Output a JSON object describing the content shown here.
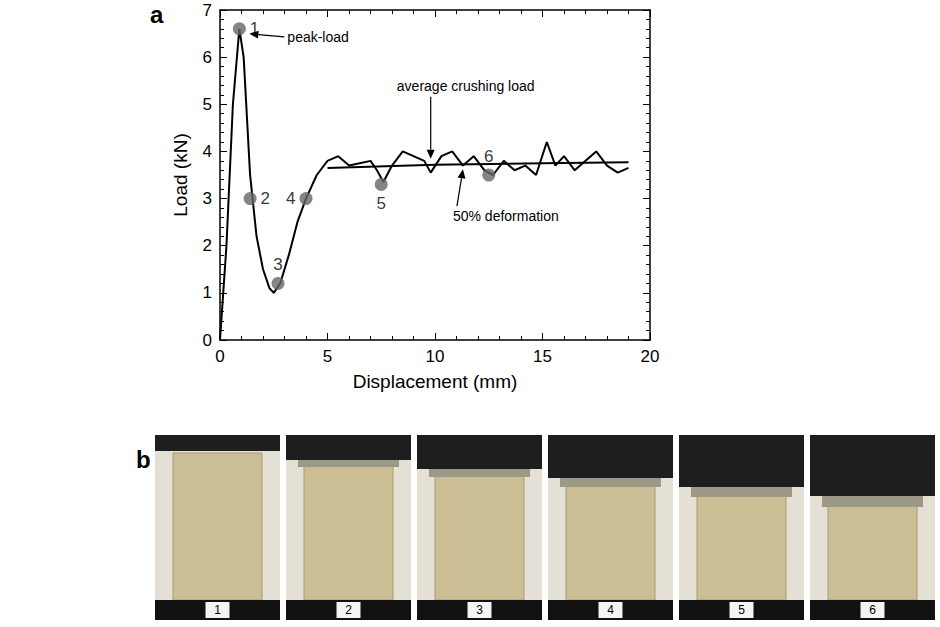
{
  "chart_data": {
    "type": "line",
    "panel_label": "a",
    "x_label": "Displacement (mm)",
    "y_label": "Load (kN)",
    "xlim": [
      0,
      20
    ],
    "xticks": [
      0,
      5,
      10,
      15,
      20
    ],
    "ylim": [
      0,
      7
    ],
    "yticks": [
      0,
      1,
      2,
      3,
      4,
      5,
      6,
      7
    ],
    "grid": false,
    "series": [
      {
        "type": "line",
        "color": "#000000",
        "line_style": "solid",
        "x": [
          0,
          0.3,
          0.6,
          0.9,
          1.1,
          1.4,
          1.7,
          2.0,
          2.3,
          2.5,
          2.8,
          3.2,
          3.6,
          4.0,
          4.5,
          5.0,
          5.5,
          6.0,
          6.5,
          7.0,
          7.3,
          7.6,
          8.0,
          8.5,
          9.0,
          9.5,
          9.8,
          10.3,
          10.8,
          11.3,
          11.8,
          12.3,
          12.7,
          13.2,
          13.7,
          14.2,
          14.7,
          15.2,
          15.6,
          16.0,
          16.5,
          17.0,
          17.5,
          18.0,
          18.5,
          19.0
        ],
        "values": [
          0,
          2.0,
          5.0,
          6.6,
          6.0,
          3.5,
          2.2,
          1.5,
          1.1,
          1.0,
          1.2,
          1.8,
          2.5,
          3.0,
          3.5,
          3.8,
          3.9,
          3.7,
          3.75,
          3.8,
          3.6,
          3.35,
          3.7,
          4.0,
          3.9,
          3.8,
          3.55,
          3.9,
          4.0,
          3.7,
          3.9,
          3.6,
          3.5,
          3.8,
          3.6,
          3.7,
          3.5,
          4.2,
          3.7,
          3.9,
          3.6,
          3.8,
          4.0,
          3.7,
          3.55,
          3.65
        ]
      },
      {
        "type": "line",
        "color": "#000000",
        "line_style": "solid",
        "x": [
          5,
          10,
          15,
          19
        ],
        "values": [
          3.65,
          3.72,
          3.75,
          3.77
        ]
      },
      {
        "type": "scatter",
        "color": "#666666",
        "marker": "circle",
        "x": [
          0.9,
          1.4,
          2.7,
          4.0,
          7.5,
          12.5
        ],
        "values": [
          6.6,
          3.0,
          1.2,
          3.0,
          3.3,
          3.5
        ],
        "point_labels": [
          "1",
          "2",
          "3",
          "4",
          "5",
          "6"
        ]
      }
    ],
    "annotations": [
      {
        "text": "peak-load",
        "x": 0.9,
        "y": 6.6
      },
      {
        "text": "average crushing load",
        "x": 9.8,
        "y": 3.72
      },
      {
        "text": "50% deformation",
        "x": 11.3,
        "y": 3.73
      }
    ]
  },
  "photo_strip": {
    "panel_label": "b",
    "frames": [
      "1",
      "2",
      "3",
      "4",
      "5",
      "6"
    ]
  }
}
